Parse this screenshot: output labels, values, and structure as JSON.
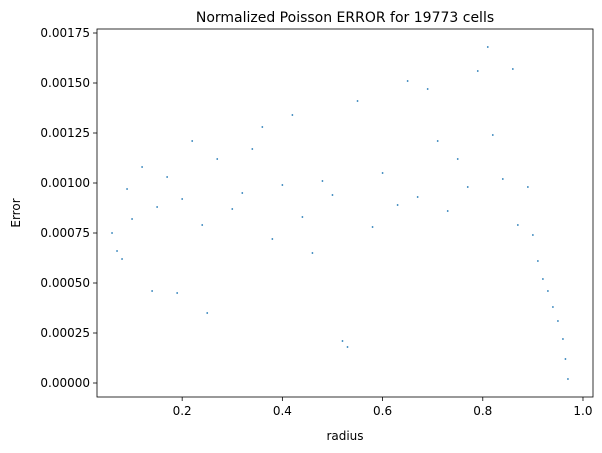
{
  "chart_data": {
    "type": "scatter",
    "title": "Normalized Poisson ERROR for 19773 cells",
    "xlabel": "radius",
    "ylabel": "Error",
    "xlim": [
      0.03,
      1.02
    ],
    "ylim": [
      -7e-05,
      0.00177
    ],
    "xticks": [
      0.2,
      0.4,
      0.6,
      0.8,
      1.0
    ],
    "xtick_labels": [
      "0.2",
      "0.4",
      "0.6",
      "0.8",
      "1.0"
    ],
    "yticks": [
      0.0,
      0.00025,
      0.0005,
      0.00075,
      0.001,
      0.00125,
      0.0015,
      0.00175
    ],
    "ytick_labels": [
      "0.00000",
      "0.00025",
      "0.00050",
      "0.00075",
      "0.00100",
      "0.00125",
      "0.00150",
      "0.00175"
    ],
    "grid": false,
    "legend": "none",
    "marker_color": "#1f77b4",
    "n_points": 19773,
    "series": [
      {
        "points": [
          [
            0.06,
            0.00075
          ],
          [
            0.07,
            0.00066
          ],
          [
            0.08,
            0.00062
          ],
          [
            0.09,
            0.00097
          ],
          [
            0.1,
            0.00082
          ],
          [
            0.12,
            0.00108
          ],
          [
            0.14,
            0.00046
          ],
          [
            0.15,
            0.00088
          ],
          [
            0.17,
            0.00103
          ],
          [
            0.19,
            0.00045
          ],
          [
            0.2,
            0.00092
          ],
          [
            0.22,
            0.00121
          ],
          [
            0.24,
            0.00079
          ],
          [
            0.25,
            0.00035
          ],
          [
            0.27,
            0.00112
          ],
          [
            0.3,
            0.00087
          ],
          [
            0.32,
            0.00095
          ],
          [
            0.34,
            0.00117
          ],
          [
            0.36,
            0.00128
          ],
          [
            0.38,
            0.00072
          ],
          [
            0.4,
            0.00099
          ],
          [
            0.42,
            0.00134
          ],
          [
            0.44,
            0.00083
          ],
          [
            0.46,
            0.00065
          ],
          [
            0.48,
            0.00101
          ],
          [
            0.5,
            0.00094
          ],
          [
            0.52,
            0.00021
          ],
          [
            0.53,
            0.00018
          ],
          [
            0.55,
            0.00141
          ],
          [
            0.58,
            0.00078
          ],
          [
            0.6,
            0.00105
          ],
          [
            0.63,
            0.00089
          ],
          [
            0.65,
            0.00151
          ],
          [
            0.67,
            0.00093
          ],
          [
            0.69,
            0.00147
          ],
          [
            0.71,
            0.00121
          ],
          [
            0.73,
            0.00086
          ],
          [
            0.75,
            0.00112
          ],
          [
            0.77,
            0.00098
          ],
          [
            0.79,
            0.00156
          ],
          [
            0.81,
            0.00168
          ],
          [
            0.82,
            0.00124
          ],
          [
            0.84,
            0.00102
          ],
          [
            0.86,
            0.00157
          ],
          [
            0.87,
            0.00079
          ],
          [
            0.89,
            0.00098
          ],
          [
            0.9,
            0.00074
          ],
          [
            0.91,
            0.00061
          ],
          [
            0.92,
            0.00052
          ],
          [
            0.93,
            0.00046
          ],
          [
            0.94,
            0.00038
          ],
          [
            0.95,
            0.00031
          ],
          [
            0.96,
            0.00022
          ],
          [
            0.965,
            0.00012
          ],
          [
            0.97,
            2e-05
          ]
        ]
      }
    ]
  }
}
